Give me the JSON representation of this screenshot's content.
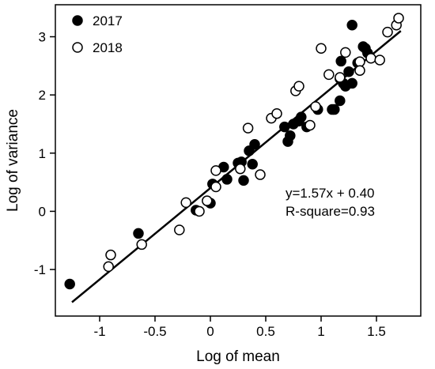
{
  "chart_data": {
    "type": "scatter",
    "xlabel": "Log of mean",
    "ylabel": "Log of variance",
    "xlim": [
      -1.4,
      1.9
    ],
    "ylim": [
      -1.8,
      3.55
    ],
    "xticks": [
      -1,
      -0.5,
      0,
      0.5,
      1,
      1.5
    ],
    "xtick_labels": [
      "-1",
      "-0.5",
      "0",
      "0.5",
      "1",
      "1.5"
    ],
    "yticks": [
      -1,
      0,
      1,
      2,
      3
    ],
    "ytick_labels": [
      "-1",
      "0",
      "1",
      "2",
      "3"
    ],
    "grid": false,
    "legend_position": "top-left",
    "series": [
      {
        "name": "2017",
        "marker": "filled-circle",
        "color": "#000000",
        "points": [
          [
            -1.27,
            -1.25
          ],
          [
            -0.65,
            -0.38
          ],
          [
            -0.13,
            0.02
          ],
          [
            0.0,
            0.14
          ],
          [
            0.02,
            0.47
          ],
          [
            0.12,
            0.76
          ],
          [
            0.15,
            0.55
          ],
          [
            0.25,
            0.83
          ],
          [
            0.28,
            0.85
          ],
          [
            0.3,
            0.53
          ],
          [
            0.35,
            1.04
          ],
          [
            0.38,
            0.81
          ],
          [
            0.4,
            1.15
          ],
          [
            0.67,
            1.45
          ],
          [
            0.7,
            1.2
          ],
          [
            0.72,
            1.3
          ],
          [
            0.75,
            1.5
          ],
          [
            0.8,
            1.55
          ],
          [
            0.82,
            1.62
          ],
          [
            0.87,
            1.45
          ],
          [
            0.97,
            1.75
          ],
          [
            1.1,
            1.75
          ],
          [
            1.12,
            1.75
          ],
          [
            1.17,
            1.9
          ],
          [
            1.17,
            2.28
          ],
          [
            1.2,
            2.2
          ],
          [
            1.22,
            2.15
          ],
          [
            1.25,
            2.4
          ],
          [
            1.28,
            2.2
          ],
          [
            1.28,
            3.2
          ],
          [
            1.33,
            2.55
          ],
          [
            1.38,
            2.83
          ],
          [
            1.4,
            2.8
          ],
          [
            1.42,
            2.72
          ],
          [
            1.18,
            2.58
          ]
        ]
      },
      {
        "name": "2018",
        "marker": "open-circle",
        "color": "#000000",
        "points": [
          [
            -0.92,
            -0.95
          ],
          [
            -0.9,
            -0.75
          ],
          [
            -0.62,
            -0.57
          ],
          [
            -0.28,
            -0.32
          ],
          [
            -0.22,
            0.15
          ],
          [
            -0.1,
            0.0
          ],
          [
            -0.03,
            0.18
          ],
          [
            0.05,
            0.7
          ],
          [
            0.05,
            0.42
          ],
          [
            0.27,
            0.73
          ],
          [
            0.34,
            1.43
          ],
          [
            0.45,
            0.63
          ],
          [
            0.55,
            1.6
          ],
          [
            0.6,
            1.68
          ],
          [
            0.77,
            2.07
          ],
          [
            0.8,
            2.15
          ],
          [
            0.9,
            1.48
          ],
          [
            0.95,
            1.8
          ],
          [
            1.0,
            2.8
          ],
          [
            1.07,
            2.35
          ],
          [
            1.17,
            2.3
          ],
          [
            1.22,
            2.73
          ],
          [
            1.35,
            2.57
          ],
          [
            1.35,
            2.42
          ],
          [
            1.45,
            2.63
          ],
          [
            1.53,
            2.6
          ],
          [
            1.6,
            3.08
          ],
          [
            1.68,
            3.2
          ],
          [
            1.7,
            3.32
          ]
        ]
      }
    ],
    "fit_line": {
      "slope": 1.57,
      "intercept": 0.4,
      "x_range": [
        -1.25,
        1.72
      ]
    },
    "annotations": [
      "y=1.57x + 0.40",
      "R-square=0.93"
    ]
  }
}
